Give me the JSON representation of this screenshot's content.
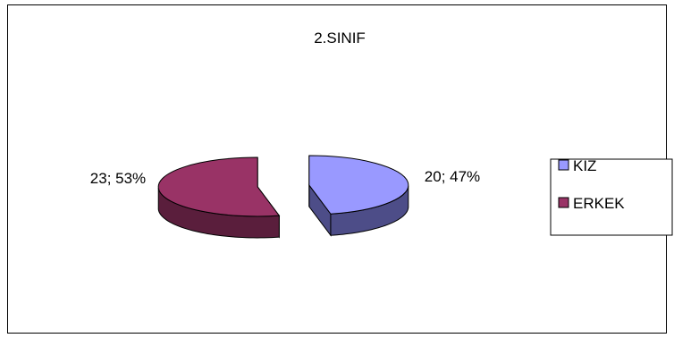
{
  "chart_data": {
    "type": "pie",
    "title": "2.SINIF",
    "label_separator": "; ",
    "legend_position": "right",
    "slices": [
      {
        "name": "KIZ",
        "value": 20,
        "percent": "47%",
        "color": "#9999ff",
        "side_color": "#4d4d88",
        "exploded": true
      },
      {
        "name": "ERKEK",
        "value": 23,
        "percent": "53%",
        "color": "#993366",
        "side_color": "#5a1e3c",
        "exploded": true
      }
    ]
  }
}
